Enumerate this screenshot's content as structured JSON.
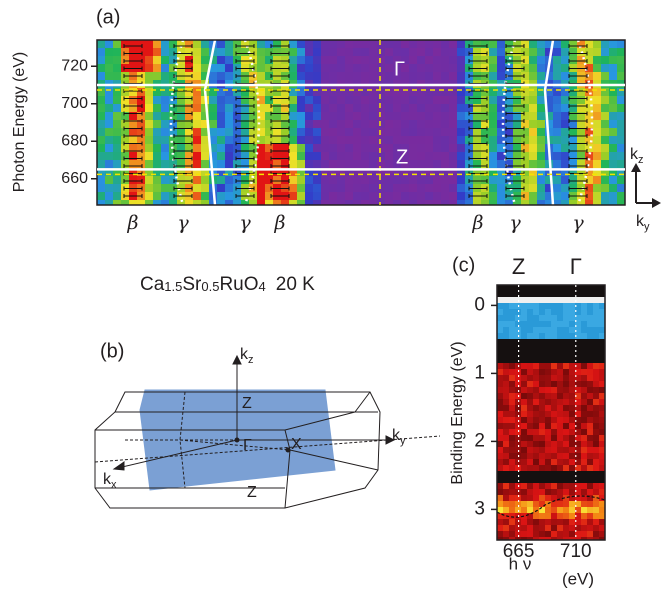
{
  "panel_a": {
    "label": "(a)",
    "ylabel": "Photon Energy (eV)",
    "ylim": [
      646,
      734
    ],
    "yticks": [
      660,
      680,
      700,
      720
    ],
    "cuts": [
      665,
      710
    ],
    "gamma_label": "Γ",
    "z_label": "Z",
    "band_labels": [
      "β",
      "γ",
      "γ",
      "β",
      "β",
      "γ",
      "γ"
    ],
    "kz": [
      "k",
      "z"
    ],
    "ky": [
      "k",
      "y"
    ]
  },
  "compound": {
    "parts": [
      "Ca",
      "1.5",
      "Sr",
      "0.5",
      "RuO",
      "4"
    ],
    "temperature": "20 K"
  },
  "panel_b": {
    "label": "(b)",
    "kz": [
      "k",
      "z"
    ],
    "ky": [
      "k",
      "y"
    ],
    "kx": [
      "k",
      "x"
    ],
    "z_top": "Z",
    "z_bottom": "Z",
    "gamma": "Γ",
    "x_point": "X"
  },
  "panel_c": {
    "label": "(c)",
    "ylabel": "Binding Energy (eV)",
    "ylim": [
      -0.3,
      3.45
    ],
    "yticks": [
      0,
      1,
      2,
      3
    ],
    "xlim": [
      648,
      733
    ],
    "xticks": [
      665,
      710
    ],
    "columns": [
      "Z",
      "Γ"
    ],
    "xlabel": [
      "h ν",
      "(eV)"
    ]
  }
}
